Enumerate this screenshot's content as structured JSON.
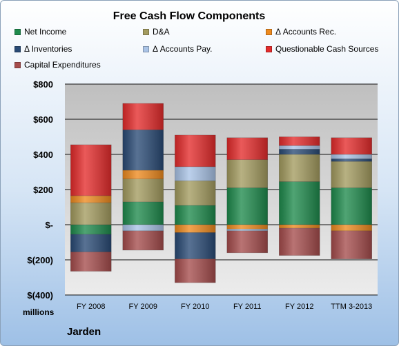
{
  "company": "Jarden",
  "unit_label": "millions",
  "chart_data": {
    "type": "bar",
    "stacked": true,
    "title": "Free Cash Flow Components",
    "categories": [
      "FY 2008",
      "FY 2009",
      "FY 2010",
      "FY 2011",
      "FY 2012",
      "TTM 3-2013"
    ],
    "yticks": [
      "$800",
      "$600",
      "$400",
      "$200",
      "$-",
      "$(200)",
      "$(400)"
    ],
    "ylim": [
      -400,
      800
    ],
    "legend_position": "top",
    "series": [
      {
        "name": "Net Income",
        "color": "#1e8a4c",
        "values": [
          -55,
          130,
          110,
          210,
          245,
          210
        ]
      },
      {
        "name": "D&A",
        "color": "#a39b5f",
        "values": [
          125,
          130,
          140,
          160,
          155,
          150
        ]
      },
      {
        "name": "Δ Accounts Rec.",
        "color": "#ee8a1e",
        "values": [
          40,
          50,
          -45,
          -25,
          -20,
          -35
        ]
      },
      {
        "name": "Δ Inventories",
        "color": "#294a75",
        "values": [
          -100,
          230,
          -150,
          0,
          30,
          15
        ]
      },
      {
        "name": "Δ Accounts Pay.",
        "color": "#a9c3e6",
        "values": [
          0,
          -35,
          80,
          -10,
          20,
          25
        ]
      },
      {
        "name": "Questionable Cash Sources",
        "color": "#e42b2b",
        "values": [
          290,
          150,
          180,
          125,
          50,
          95
        ]
      },
      {
        "name": "Capital Expenditures",
        "color": "#a54c4c",
        "values": [
          -110,
          -110,
          -135,
          -125,
          -155,
          -160
        ]
      }
    ]
  }
}
